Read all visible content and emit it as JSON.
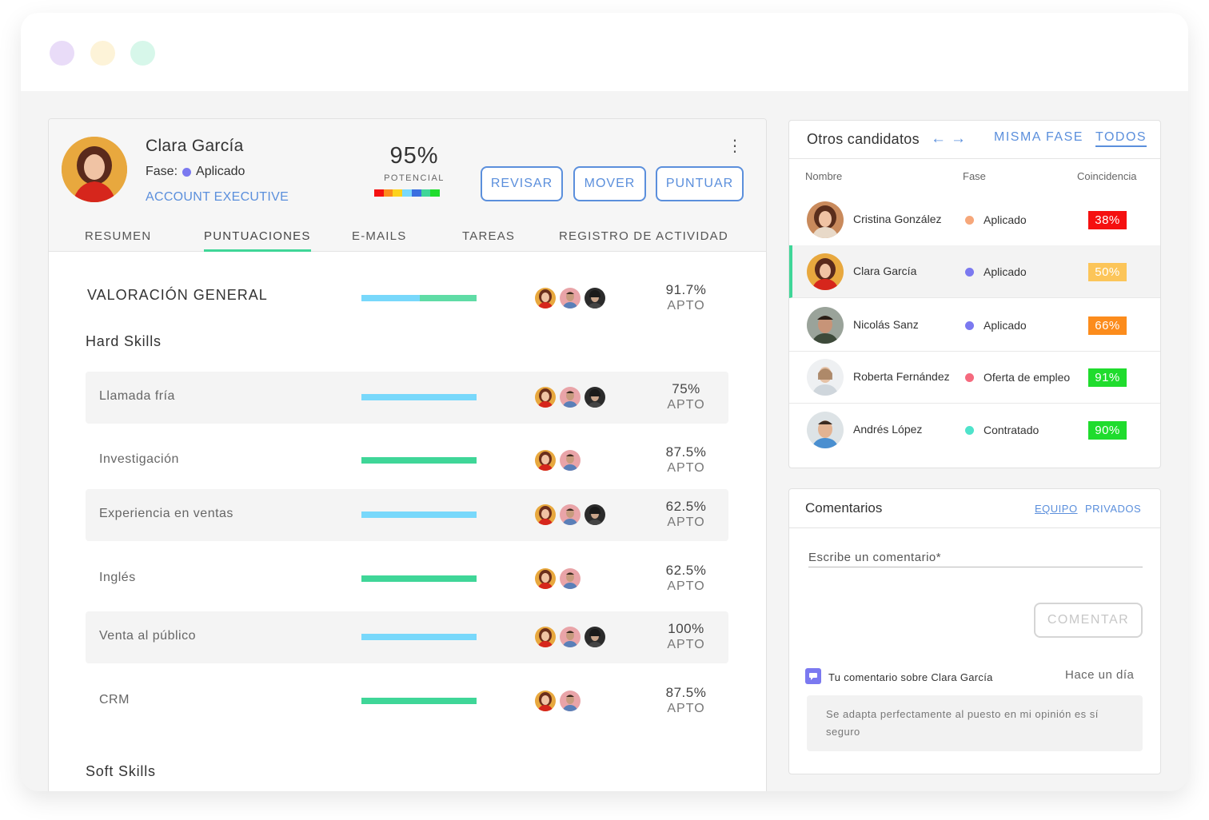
{
  "candidate": {
    "name": "Clara García",
    "phase_label": "Fase:",
    "phase": "Aplicado",
    "phase_color": "#7b79f0",
    "role": "ACCOUNT EXECUTIVE",
    "score": "95%",
    "score_label": "POTENCIAL"
  },
  "actions": {
    "review": "REVISAR",
    "move": "MOVER",
    "rate": "PUNTUAR"
  },
  "tabs": [
    "RESUMEN",
    "PUNTUACIONES",
    "E-MAILS",
    "TAREAS",
    "REGISTRO DE ACTIVIDAD"
  ],
  "active_tab": "PUNTUACIONES",
  "scores": {
    "overall": {
      "label": "VALORACIÓN GENERAL",
      "value": "91.7%",
      "status": "APTO",
      "fill": 1.0,
      "bar": "mixed",
      "evaluators": 3
    },
    "hard_skills_title": "Hard Skills",
    "soft_skills_title": "Soft Skills",
    "hard_skills": [
      {
        "label": "Llamada fría",
        "value": "75%",
        "status": "APTO",
        "fill": 1.0,
        "bar": "blue",
        "evaluators": 3,
        "shaded": true
      },
      {
        "label": "Investigación",
        "value": "87.5%",
        "status": "APTO",
        "fill": 1.0,
        "bar": "green",
        "evaluators": 2,
        "shaded": false
      },
      {
        "label": "Experiencia en ventas",
        "value": "62.5%",
        "status": "APTO",
        "fill": 1.0,
        "bar": "blue",
        "evaluators": 3,
        "shaded": true
      },
      {
        "label": "Inglés",
        "value": "62.5%",
        "status": "APTO",
        "fill": 1.0,
        "bar": "green",
        "evaluators": 2,
        "shaded": false
      },
      {
        "label": "Venta al público",
        "value": "100%",
        "status": "APTO",
        "fill": 1.0,
        "bar": "blue",
        "evaluators": 3,
        "shaded": true
      },
      {
        "label": "CRM",
        "value": "87.5%",
        "status": "APTO",
        "fill": 1.0,
        "bar": "green",
        "evaluators": 2,
        "shaded": false
      }
    ]
  },
  "colors": {
    "accent": "#5b8fdc",
    "green": "#3fd698",
    "blue": "#78d8fb"
  },
  "others": {
    "title": "Otros candidatos",
    "filters": [
      "MISMA FASE",
      "TODOS"
    ],
    "active_filter": "TODOS",
    "columns": [
      "Nombre",
      "Fase",
      "Coincidencia"
    ],
    "rows": [
      {
        "name": "Cristina González",
        "phase": "Aplicado",
        "phase_color": "#f6a77a",
        "match": "38%",
        "match_color": "#f51010",
        "selected": false
      },
      {
        "name": "Clara García",
        "phase": "Aplicado",
        "phase_color": "#7b79f0",
        "match": "50%",
        "match_color": "#fcc559",
        "selected": true
      },
      {
        "name": "Nicolás Sanz",
        "phase": "Aplicado",
        "phase_color": "#7b79f0",
        "match": "66%",
        "match_color": "#fc8c1c",
        "selected": false
      },
      {
        "name": "Roberta Fernández",
        "phase": "Oferta de empleo",
        "phase_color": "#f56a7e",
        "match": "91%",
        "match_color": "#1fdc2d",
        "selected": false
      },
      {
        "name": "Andrés López",
        "phase": "Contratado",
        "phase_color": "#4fe3cb",
        "match": "90%",
        "match_color": "#1fdc2d",
        "selected": false
      }
    ]
  },
  "comments": {
    "title": "Comentarios",
    "tabs": [
      "EQUIPO",
      "PRIVADOS"
    ],
    "active_tab": "EQUIPO",
    "placeholder": "Escribe un comentario*",
    "submit": "COMENTAR",
    "entry": {
      "meta": "Tu comentario sobre Clara García",
      "time": "Hace un día",
      "text": "Se adapta perfectamente al puesto en mi opinión es sí seguro"
    }
  }
}
